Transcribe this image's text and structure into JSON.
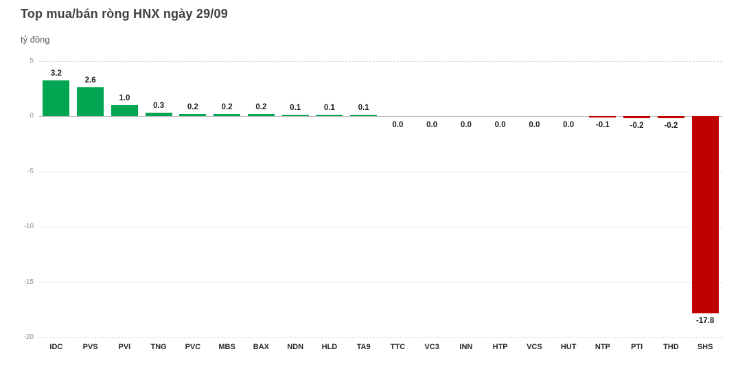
{
  "header": {
    "title": "Top mua/bán ròng HNX ngày 29/09",
    "unit_label": "tỷ đồng"
  },
  "colors": {
    "positive_bar": "#00A651",
    "negative_bar": "#C00000",
    "gridline": "#D9D9D9",
    "zero_axis": "#BFBFBF",
    "title_text": "#404040",
    "tick_text": "#8C8C8C",
    "category_text": "#262626",
    "value_text": "#1A1A1A"
  },
  "chart_data": {
    "type": "bar",
    "title": "Top mua/bán ròng HNX ngày 29/09",
    "ylabel": "tỷ đồng",
    "xlabel": "",
    "categories": [
      "IDC",
      "PVS",
      "PVI",
      "TNG",
      "PVC",
      "MBS",
      "BAX",
      "NDN",
      "HLD",
      "TA9",
      "TTC",
      "VC3",
      "INN",
      "HTP",
      "VCS",
      "HUT",
      "NTP",
      "PTI",
      "THD",
      "SHS"
    ],
    "values": [
      3.2,
      2.6,
      1.0,
      0.3,
      0.2,
      0.2,
      0.2,
      0.1,
      0.1,
      0.1,
      0.0,
      0.0,
      0.0,
      0.0,
      0.0,
      0.0,
      -0.1,
      -0.2,
      -0.2,
      -17.8
    ],
    "value_labels": [
      "3.2",
      "2.6",
      "1.0",
      "0.3",
      "0.2",
      "0.2",
      "0.2",
      "0.1",
      "0.1",
      "0.1",
      "0.0",
      "0.0",
      "0.0",
      "0.0",
      "0.0",
      "0.0",
      "-0.1",
      "-0.2",
      "-0.2",
      "-17.8"
    ],
    "ylim": [
      -20,
      5
    ],
    "yticks": [
      5,
      0,
      -5,
      -10,
      -15,
      -20
    ],
    "ytick_labels": [
      "5",
      "0",
      "-5",
      "-10",
      "-15",
      "-20"
    ],
    "grid": true,
    "legend": false
  }
}
